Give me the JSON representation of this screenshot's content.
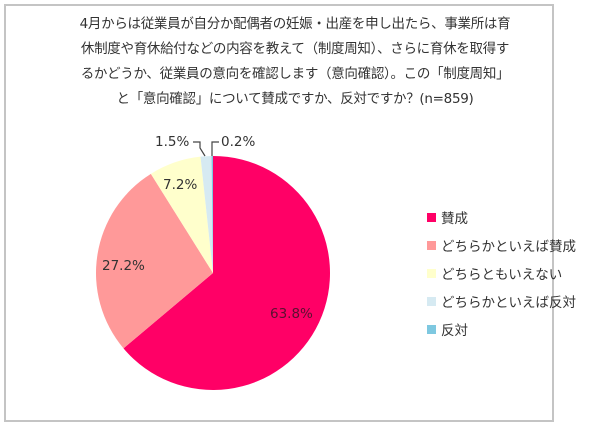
{
  "title_lines": [
    "4月からは従業員が自分か配偶者の妊娠・出産を申し出たら、事業所は育",
    "休制度や育休給付などの内容を教えて（制度周知）、さらに育休を取得す",
    "るかどうか、従業員の意向を確認します（意向確認）。この「制度周知」",
    "と「意向確認」について賛成ですか、反対ですか？(n=859)"
  ],
  "chart_data": {
    "type": "pie",
    "title": "4月からは従業員が自分か配偶者の妊娠・出産を申し出たら、事業所は育休制度や育休給付などの内容を教えて（制度周知）、さらに育休を取得するかどうか、従業員の意向を確認します（意向確認）。この「制度周知」と「意向確認」について賛成ですか、反対ですか？(n=859)",
    "n": 859,
    "categories": [
      "賛成",
      "どちらかといえば賛成",
      "どちらともいえない",
      "どちらかといえば反対",
      "反対"
    ],
    "values": [
      63.8,
      27.2,
      7.2,
      1.5,
      0.2
    ],
    "labels": [
      "63.8%",
      "27.2%",
      "7.2%",
      "1.5%",
      "0.2%"
    ],
    "colors": [
      "#ff0066",
      "#ff9999",
      "#ffffcc",
      "#d6eaf2",
      "#7ec8e0"
    ],
    "start_angle": "12 o'clock, clockwise",
    "legend_position": "right"
  },
  "legend": {
    "items": [
      {
        "label": "賛成",
        "color": "#ff0066"
      },
      {
        "label": "どちらかといえば賛成",
        "color": "#ff9999"
      },
      {
        "label": "どちらともいえない",
        "color": "#ffffcc"
      },
      {
        "label": "どちらかといえば反対",
        "color": "#d6eaf2"
      },
      {
        "label": "反対",
        "color": "#7ec8e0"
      }
    ]
  }
}
